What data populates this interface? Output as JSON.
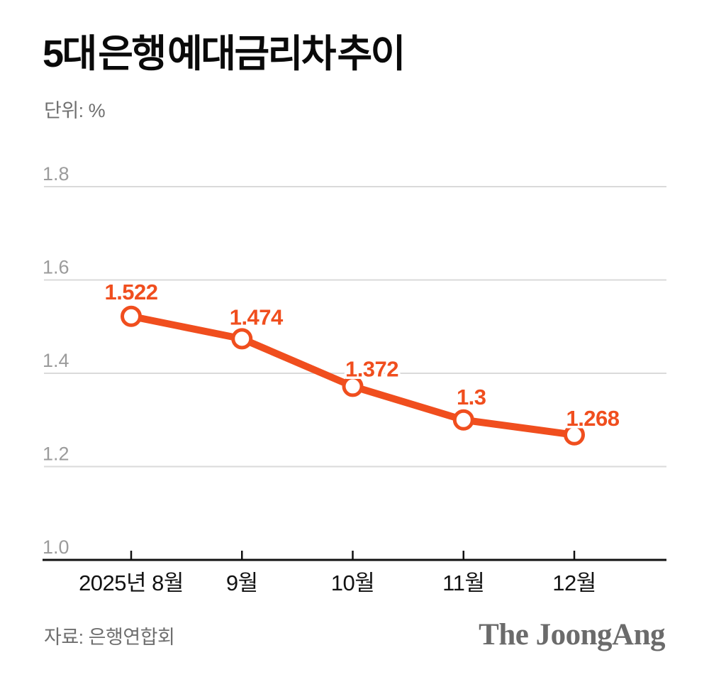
{
  "header": {
    "title": "5대 은행 예대금리차 추이",
    "unit_label": "단위: %"
  },
  "footer": {
    "source_label": "자료: 은행연합회",
    "brand": "The JoongAng"
  },
  "colors": {
    "accent": "#F04E1E",
    "marker_fill": "#FFFFFF",
    "grid": "#DADADA",
    "axis": "#111111",
    "ytick_text": "#9B9B9B",
    "xtick_text": "#121212",
    "muted_text": "#6F6F6F",
    "brand_text": "#6B6B6B"
  },
  "chart_data": {
    "type": "line",
    "title": "5대 은행 예대금리차 추이",
    "unit": "%",
    "categories": [
      "2025년 8월",
      "9월",
      "10월",
      "11월",
      "12월"
    ],
    "values": [
      1.522,
      1.474,
      1.372,
      1.3,
      1.268
    ],
    "value_labels": [
      "1.522",
      "1.474",
      "1.372",
      "1.3",
      "1.268"
    ],
    "series_name": "5대 은행 예대금리차",
    "ylim": [
      1.0,
      1.8
    ],
    "yticks": [
      1.8,
      1.6,
      1.4,
      1.2,
      1.0
    ],
    "ytick_labels": [
      "1.8",
      "1.6",
      "1.4",
      "1.2",
      "1.0"
    ],
    "grid": true,
    "legend": "none",
    "xlabel": "",
    "ylabel": ""
  }
}
